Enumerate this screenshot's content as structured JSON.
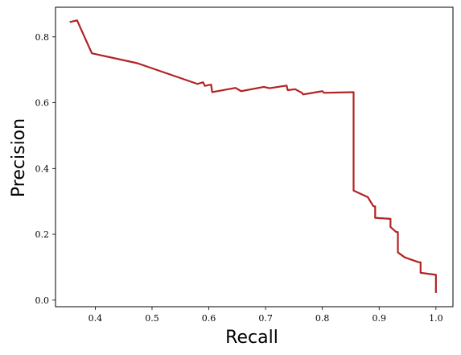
{
  "chart_data": {
    "type": "line",
    "title": "",
    "xlabel": "Recall",
    "ylabel": "Precision",
    "xlim": [
      0.33,
      1.03
    ],
    "ylim": [
      -0.02,
      0.89
    ],
    "xticks": [
      0.4,
      0.5,
      0.6,
      0.7,
      0.8,
      0.9,
      1.0
    ],
    "xtick_labels": [
      "0.4",
      "0.5",
      "0.6",
      "0.7",
      "0.8",
      "0.9",
      "1.0"
    ],
    "yticks": [
      0.0,
      0.2,
      0.4,
      0.6,
      0.8
    ],
    "ytick_labels": [
      "0.0",
      "0.2",
      "0.4",
      "0.6",
      "0.8"
    ],
    "grid": false,
    "legend": "none",
    "series": [
      {
        "color": "#b22222",
        "x": [
          0.355,
          0.368,
          0.394,
          0.474,
          0.58,
          0.59,
          0.593,
          0.604,
          0.606,
          0.647,
          0.657,
          0.697,
          0.707,
          0.737,
          0.739,
          0.752,
          0.764,
          0.766,
          0.8,
          0.803,
          0.853,
          0.855,
          0.855,
          0.88,
          0.89,
          0.893,
          0.893,
          0.92,
          0.92,
          0.93,
          0.933,
          0.933,
          0.945,
          0.97,
          0.973,
          0.973,
          1.0,
          1.0
        ],
        "y": [
          0.845,
          0.85,
          0.75,
          0.72,
          0.657,
          0.662,
          0.651,
          0.655,
          0.632,
          0.645,
          0.635,
          0.648,
          0.644,
          0.652,
          0.638,
          0.641,
          0.63,
          0.625,
          0.635,
          0.63,
          0.632,
          0.632,
          0.333,
          0.313,
          0.285,
          0.285,
          0.25,
          0.247,
          0.222,
          0.207,
          0.207,
          0.145,
          0.13,
          0.115,
          0.115,
          0.083,
          0.077,
          0.022
        ]
      }
    ]
  }
}
